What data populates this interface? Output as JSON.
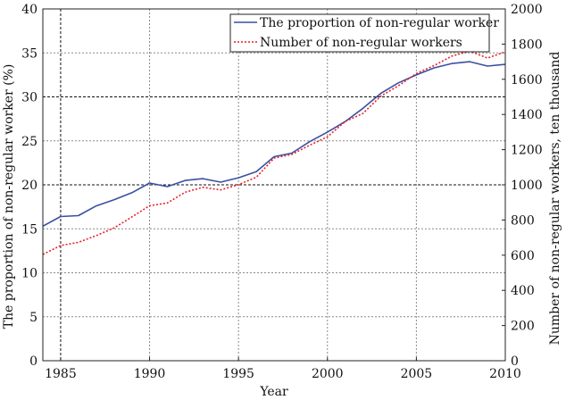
{
  "chart_data": {
    "type": "line",
    "title": "",
    "xlabel": "Year",
    "ylabel": "The proportion of non-regular worker (%)",
    "y2label": "Number of non-regular workers, ten thousand",
    "xlim": [
      1984,
      2010
    ],
    "ylim": [
      0,
      40
    ],
    "y2lim": [
      0,
      2000
    ],
    "grid": true,
    "legend_position": "upper right",
    "x_ticks": [
      1985,
      1990,
      1995,
      2000,
      2005,
      2010
    ],
    "y_ticks": [
      0,
      5,
      10,
      15,
      20,
      25,
      30,
      35,
      40
    ],
    "y2_ticks": [
      0,
      200,
      400,
      600,
      800,
      1000,
      1200,
      1400,
      1600,
      1800,
      2000
    ],
    "x": [
      1984,
      1985,
      1986,
      1987,
      1988,
      1989,
      1990,
      1991,
      1992,
      1993,
      1994,
      1995,
      1996,
      1997,
      1998,
      1999,
      2000,
      2001,
      2002,
      2003,
      2004,
      2005,
      2006,
      2007,
      2008,
      2009,
      2010
    ],
    "series": [
      {
        "name": "The proportion of non-regular worker",
        "axis": "left",
        "color": "#3a4fa3",
        "style": "solid",
        "values": [
          15.3,
          16.4,
          16.5,
          17.6,
          18.3,
          19.1,
          20.2,
          19.8,
          20.5,
          20.7,
          20.3,
          20.8,
          21.5,
          23.2,
          23.6,
          24.9,
          26.0,
          27.2,
          28.7,
          30.4,
          31.6,
          32.5,
          33.3,
          33.8,
          34.0,
          33.5,
          33.7
        ]
      },
      {
        "name": "Number of non-regular workers",
        "axis": "right",
        "color": "#e8202a",
        "style": "dotted",
        "values": [
          604,
          655,
          673,
          711,
          755,
          817,
          881,
          897,
          958,
          986,
          971,
          1001,
          1043,
          1152,
          1173,
          1225,
          1273,
          1360,
          1406,
          1504,
          1564,
          1633,
          1678,
          1732,
          1760,
          1721,
          1756
        ]
      }
    ]
  },
  "legend": {
    "items": [
      {
        "label": "The proportion of non-regular worker",
        "color": "#3a4fa3"
      },
      {
        "label": "Number of non-regular workers",
        "color": "#e8202a"
      }
    ]
  }
}
